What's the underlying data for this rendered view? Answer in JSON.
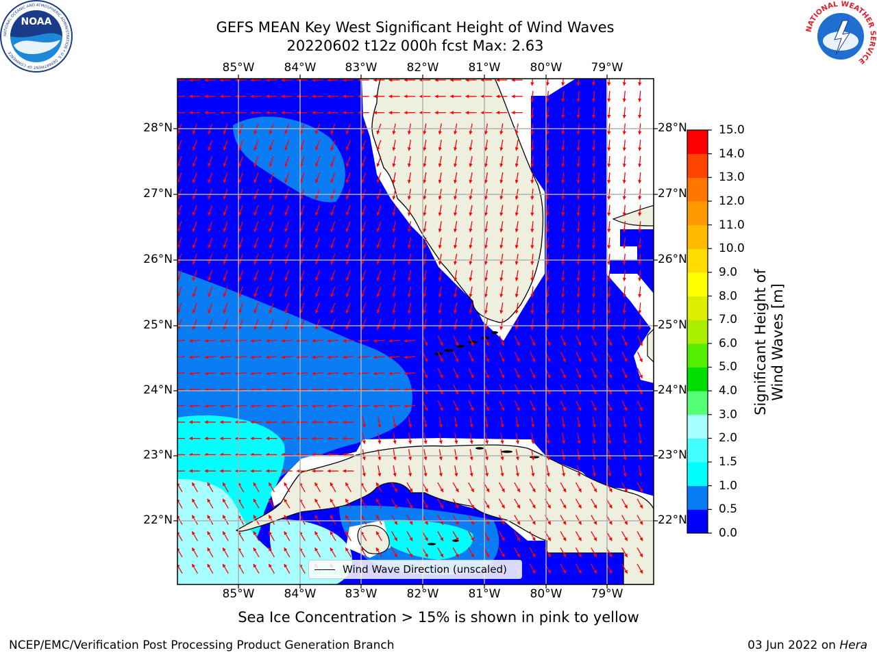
{
  "title": {
    "line1": "GEFS MEAN Key West Significant Height of Wind Waves",
    "line2": "20220602 t12z 000h fcst   Max: 2.63"
  },
  "axes": {
    "lon_labels": [
      "85°W",
      "84°W",
      "83°W",
      "82°W",
      "81°W",
      "80°W",
      "79°W"
    ],
    "lat_labels": [
      "28°N",
      "27°N",
      "26°N",
      "25°N",
      "24°N",
      "23°N",
      "22°N"
    ]
  },
  "colorbar": {
    "label": "Significant Height of Wind Waves [m]",
    "ticks": [
      "15.0",
      "14.0",
      "13.0",
      "12.0",
      "11.0",
      "10.0",
      "9.0",
      "8.0",
      "7.0",
      "6.0",
      "5.0",
      "4.0",
      "3.0",
      "2.0",
      "1.5",
      "1.0",
      "0.5",
      "0.0"
    ],
    "colors_bottom_to_top": [
      "#0000ff",
      "#0a7df5",
      "#00ffff",
      "#44ffff",
      "#a8ffff",
      "#55ff77",
      "#00dd00",
      "#55ee00",
      "#aaee00",
      "#ddee00",
      "#ffff00",
      "#ffdd00",
      "#ffbb00",
      "#ff9900",
      "#ff7700",
      "#ff4400",
      "#ff0000"
    ]
  },
  "legend": {
    "label": "Wind Wave Direction (unscaled)"
  },
  "note": "Sea Ice Concentration > 15% is shown in pink to yellow",
  "footer": {
    "left": "NCEP/EMC/Verification Post Processing Product Generation Branch",
    "right_date": "03 Jun 2022 on ",
    "right_machine": "Hera"
  },
  "logos": {
    "noaa_text": "NOAA",
    "noaa_ring": "NATIONAL OCEANIC AND ATMOSPHERIC ADMINISTRATION • U.S. DEPARTMENT OF COMMERCE",
    "nws_ring": "NATIONAL WEATHER SERVICE"
  },
  "colors": {
    "arrow": "#ff0000",
    "land": "#efefdf",
    "grid": "#b0b0b0"
  }
}
